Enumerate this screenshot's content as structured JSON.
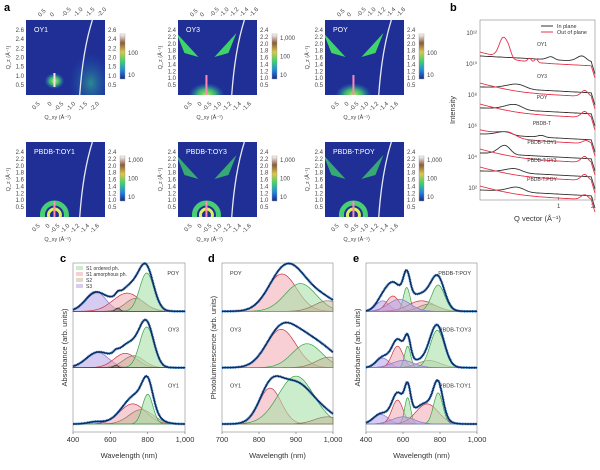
{
  "panel_labels": {
    "a": "a",
    "b": "b",
    "c": "c",
    "d": "d",
    "e": "e"
  },
  "colors": {
    "map_bg": "#1f2f95",
    "map_feature": "#3fd36a",
    "total_line": "#0d2a5a",
    "total_dots": "#2a78c8",
    "in_plane": "#333333",
    "out_of_plane": "#e8334a",
    "s1_ordered": "#3aa14a",
    "s1_amorphous": "#c83545",
    "s2": "#8a7a60",
    "s3": "#8a78c8"
  },
  "chart_data": [
    {
      "type": "heatmap",
      "id": "a",
      "xlabel": "Q_xy (Å⁻¹)",
      "ylabel": "Q_z (Å⁻¹)",
      "maps": [
        {
          "name": "OY1",
          "top_ticks": [
            "0.5",
            "0",
            "-0.5",
            "-1.0",
            "-1.5",
            "-2.0"
          ],
          "bottom_ticks": [
            "0.5",
            "0",
            "-0.5",
            "-1.0",
            "-1.5",
            "-2.0"
          ],
          "y_ticks": [
            "0.5",
            "1.0",
            "1.5",
            "2.0",
            "2.2",
            "2.4",
            "2.6"
          ],
          "colorbar": [
            "10",
            "100"
          ],
          "features": "isotropic"
        },
        {
          "name": "OY3",
          "top_ticks": [
            "0.5",
            "0",
            "-0.5",
            "-1.0",
            "-1.2",
            "-1.4",
            "-1.6"
          ],
          "bottom_ticks": [
            "0.5",
            "0",
            "-0.5",
            "-1.0",
            "-1.2",
            "-1.4",
            "-1.6"
          ],
          "y_ticks": [
            "0.5",
            "1.0",
            "1.2",
            "1.4",
            "1.6",
            "1.8",
            "2.0",
            "2.2",
            "2.4"
          ],
          "colorbar": [
            "10",
            "100",
            "1,000"
          ],
          "features": "wedges"
        },
        {
          "name": "POY",
          "top_ticks": [
            "0.5",
            "0",
            "-0.5",
            "-1.0",
            "-1.2",
            "-1.4",
            "-1.6"
          ],
          "bottom_ticks": [
            "0.5",
            "0",
            "-0.5",
            "-1.0",
            "-1.2",
            "-1.4",
            "-1.6"
          ],
          "y_ticks": [
            "0.5",
            "1.0",
            "1.2",
            "1.4",
            "1.6",
            "1.8",
            "2.0",
            "2.2",
            "2.4"
          ],
          "colorbar": [
            "10",
            "100"
          ],
          "features": "wedges"
        },
        {
          "name": "PBDB-T:OY1",
          "top_ticks": [],
          "bottom_ticks": [
            "0.5",
            "0",
            "-0.5",
            "-1.0",
            "-1.2",
            "-1.4",
            "-1.6"
          ],
          "y_ticks": [
            "0.5",
            "1.0",
            "1.2",
            "1.4",
            "1.6",
            "1.8",
            "2.0",
            "2.2",
            "2.4"
          ],
          "colorbar": [
            "10",
            "100",
            "1,000"
          ],
          "features": "rings"
        },
        {
          "name": "PBDB-T:OY3",
          "top_ticks": [],
          "bottom_ticks": [
            "0.5",
            "0",
            "-0.5",
            "-1.0",
            "-1.2",
            "-1.4",
            "-1.6"
          ],
          "y_ticks": [
            "0.5",
            "1.0",
            "1.2",
            "1.4",
            "1.6",
            "1.8",
            "2.0",
            "2.2",
            "2.4"
          ],
          "colorbar": [
            "10",
            "100",
            "1,000"
          ],
          "features": "rings_wedges"
        },
        {
          "name": "PBDB-T:POY",
          "top_ticks": [],
          "bottom_ticks": [
            "0.5",
            "0",
            "-0.5",
            "-1.0",
            "-1.2",
            "-1.4",
            "-1.6"
          ],
          "y_ticks": [
            "0.5",
            "1.0",
            "1.2",
            "1.4",
            "1.6",
            "1.8",
            "2.0",
            "2.2",
            "2.4"
          ],
          "colorbar": [
            "10",
            "100",
            "1,000"
          ],
          "features": "rings_wedges"
        }
      ]
    },
    {
      "type": "line",
      "id": "b",
      "xlabel": "Q vector (Å⁻¹)",
      "ylabel": "Intensity",
      "xscale": "log",
      "xlim": [
        0.2,
        2.1
      ],
      "x_ticks": [
        "1",
        "2"
      ],
      "x_tick_values": [
        1,
        2
      ],
      "y_ticks": [
        "10¹²",
        "10¹⁰",
        "10⁸",
        "10⁶",
        "10⁴",
        "10²"
      ],
      "legend": {
        "position": "top-right",
        "entries": [
          "In plane",
          "Out of plane"
        ]
      },
      "series": [
        {
          "name": "OY1",
          "in_plane_peaks": [
            [
              0.85,
              0.06,
              0.5
            ],
            [
              1.6,
              0.15,
              0.9
            ]
          ],
          "out_of_plane_peaks": [
            [
              0.32,
              0.025,
              3.2
            ],
            [
              0.36,
              0.02,
              1.4
            ],
            [
              0.55,
              0.02,
              0.6
            ],
            [
              0.63,
              0.02,
              0.6
            ]
          ]
        },
        {
          "name": "OY3",
          "in_plane_peaks": [
            [
              0.42,
              0.08,
              0.8
            ]
          ],
          "out_of_plane_peaks": [
            [
              1.7,
              0.12,
              1.0
            ]
          ]
        },
        {
          "name": "POY",
          "in_plane_peaks": [
            [
              0.4,
              0.07,
              0.9
            ]
          ],
          "out_of_plane_peaks": [
            [
              1.7,
              0.12,
              1.0
            ]
          ]
        },
        {
          "name": "PBDB-T",
          "in_plane_peaks": [
            [
              0.33,
              0.05,
              0.6
            ],
            [
              0.7,
              0.05,
              0.3
            ]
          ],
          "out_of_plane_peaks": [
            [
              0.35,
              0.06,
              0.8
            ],
            [
              1.75,
              0.12,
              0.5
            ]
          ]
        },
        {
          "name": "PBDB-T:OY1",
          "in_plane_peaks": [
            [
              0.33,
              0.04,
              1.5
            ]
          ],
          "out_of_plane_peaks": [
            [
              1.7,
              0.12,
              1.0
            ]
          ]
        },
        {
          "name": "PBDB-T:OY3",
          "in_plane_peaks": [
            [
              0.4,
              0.07,
              0.7
            ]
          ],
          "out_of_plane_peaks": [
            [
              1.7,
              0.12,
              1.0
            ]
          ]
        },
        {
          "name": "PBDB-T:POY",
          "in_plane_peaks": [
            [
              0.42,
              0.07,
              0.8
            ]
          ],
          "out_of_plane_peaks": [
            [
              1.7,
              0.12,
              0.8
            ]
          ]
        }
      ]
    },
    {
      "type": "area",
      "id": "c",
      "xlabel": "Wavelength (nm)",
      "ylabel": "Absorbance (arb. units)",
      "xlim": [
        400,
        1000
      ],
      "x_ticks": [
        "400",
        "600",
        "800",
        "1,000"
      ],
      "x_tick_values": [
        400,
        600,
        800,
        1000
      ],
      "legend": {
        "position": "top-left",
        "entries": [
          "S1 ordered ph.",
          "S1 amorphous ph.",
          "S2",
          "S3"
        ]
      },
      "samples": [
        {
          "name": "POY",
          "components": [
            [
              "s3",
              520,
              55,
              0.42
            ],
            [
              "s1_amorphous",
              690,
              75,
              0.38
            ],
            [
              "s2",
              735,
              55,
              0.27
            ],
            [
              "s1_ordered",
              795,
              38,
              0.8
            ],
            [
              "other",
              640,
              12,
              0.07
            ]
          ]
        },
        {
          "name": "OY3",
          "components": [
            [
              "s3",
              530,
              60,
              0.32
            ],
            [
              "s1_amorphous",
              680,
              60,
              0.3
            ],
            [
              "s2",
              725,
              55,
              0.25
            ],
            [
              "s1_ordered",
              795,
              38,
              0.85
            ],
            [
              "other",
              630,
              12,
              0.05
            ]
          ]
        },
        {
          "name": "OY1",
          "components": [
            [
              "s3",
              520,
              40,
              0.05
            ],
            [
              "s1_amorphous",
              720,
              70,
              0.42
            ],
            [
              "s2",
              765,
              65,
              0.3
            ],
            [
              "s1_ordered",
              800,
              28,
              0.62
            ]
          ]
        }
      ]
    },
    {
      "type": "area",
      "id": "d",
      "xlabel": "Wavelength (nm)",
      "ylabel": "Photoluminescence (arb. units)",
      "xlim": [
        700,
        1000
      ],
      "x_ticks": [
        "700",
        "800",
        "900",
        "1,000"
      ],
      "x_tick_values": [
        700,
        800,
        900,
        1000
      ],
      "samples": [
        {
          "name": "POY",
          "components": [
            [
              "s1_amorphous",
              862,
              40,
              0.78
            ],
            [
              "s1_ordered",
              912,
              42,
              0.58
            ],
            [
              "s2",
              985,
              35,
              0.22
            ]
          ]
        },
        {
          "name": "OY3",
          "components": [
            [
              "s1_amorphous",
              860,
              40,
              0.8
            ],
            [
              "s1_ordered",
              930,
              40,
              0.5
            ],
            [
              "s2",
              990,
              35,
              0.22
            ]
          ]
        },
        {
          "name": "OY1",
          "components": [
            [
              "s1_amorphous",
              830,
              30,
              0.75
            ],
            [
              "s1_ordered",
              900,
              48,
              1.0
            ],
            [
              "s2",
              985,
              35,
              0.15
            ]
          ]
        }
      ]
    },
    {
      "type": "area",
      "id": "e",
      "xlabel": "Wavelength (nm)",
      "ylabel": "Absorbance (arb. units)",
      "xlim": [
        400,
        1000
      ],
      "x_ticks": [
        "400",
        "600",
        "800",
        "1,000"
      ],
      "x_tick_values": [
        400,
        600,
        800,
        1000
      ],
      "samples": [
        {
          "name": "PBDB-T:POY",
          "components": [
            [
              "s3",
              490,
              35,
              0.22
            ],
            [
              "s1_amorphous",
              545,
              35,
              0.32
            ],
            [
              "s1_ordered",
              620,
              18,
              0.5
            ],
            [
              "s1_amorphous",
              700,
              70,
              0.22
            ],
            [
              "s2",
              740,
              55,
              0.15
            ],
            [
              "s1_ordered",
              790,
              35,
              0.55
            ],
            [
              "s3",
              580,
              60,
              0.25
            ]
          ]
        },
        {
          "name": "PBDB-T:OY3",
          "components": [
            [
              "s3",
              490,
              35,
              0.2
            ],
            [
              "s1_amorphous",
              570,
              30,
              0.45
            ],
            [
              "s1_ordered",
              625,
              16,
              0.45
            ],
            [
              "s2",
              740,
              60,
              0.15
            ],
            [
              "s1_ordered",
              785,
              38,
              0.78
            ],
            [
              "s3",
              600,
              60,
              0.15
            ]
          ]
        },
        {
          "name": "PBDB-T:OY1",
          "components": [
            [
              "s3",
              480,
              40,
              0.2
            ],
            [
              "s1_amorphous",
              570,
              30,
              0.5
            ],
            [
              "s1_ordered",
              625,
              16,
              0.55
            ],
            [
              "s1_amorphous",
              730,
              60,
              0.42
            ],
            [
              "s1_ordered",
              790,
              25,
              0.65
            ],
            [
              "s3",
              600,
              60,
              0.15
            ]
          ]
        }
      ]
    }
  ]
}
